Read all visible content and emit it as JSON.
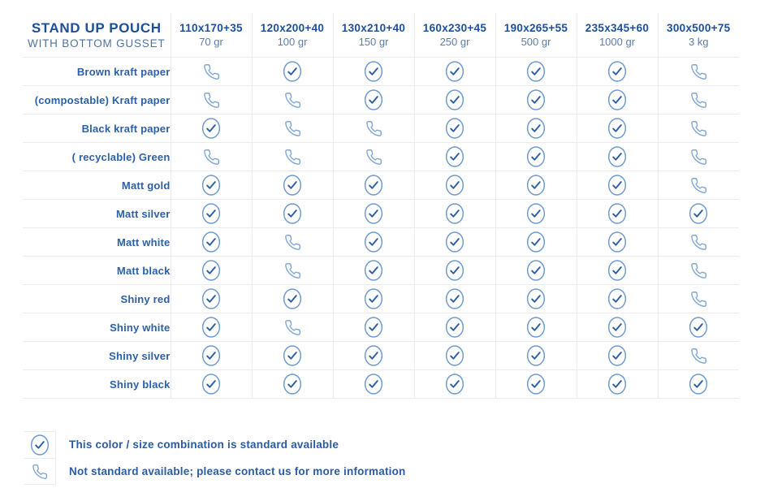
{
  "colors": {
    "title": "#1b4f9b",
    "subtitle": "#51739f",
    "col_size": "#1b4f9b",
    "col_weight": "#5c7cae",
    "row_label": "#2b61a8",
    "legend_text": "#2a5ca6",
    "check_circle": "#6f9bd1",
    "check_mark": "#2d5fa6",
    "phone": "#7fa6d4",
    "grid": "#ebecf1"
  },
  "header": {
    "title": "STAND UP POUCH",
    "subtitle": "WITH BOTTOM GUSSET"
  },
  "columns": [
    {
      "size": "110x170+35",
      "weight": "70 gr"
    },
    {
      "size": "120x200+40",
      "weight": "100 gr"
    },
    {
      "size": "130x210+40",
      "weight": "150 gr"
    },
    {
      "size": "160x230+45",
      "weight": "250 gr"
    },
    {
      "size": "190x265+55",
      "weight": "500 gr"
    },
    {
      "size": "235x345+60",
      "weight": "1000 gr"
    },
    {
      "size": "300x500+75",
      "weight": "3 kg"
    }
  ],
  "rows": [
    {
      "label": "Brown kraft paper",
      "cells": [
        "phone",
        "check",
        "check",
        "check",
        "check",
        "check",
        "phone"
      ]
    },
    {
      "label": "(compostable) Kraft paper",
      "cells": [
        "phone",
        "phone",
        "check",
        "check",
        "check",
        "check",
        "phone"
      ]
    },
    {
      "label": "Black kraft paper",
      "cells": [
        "check",
        "phone",
        "phone",
        "check",
        "check",
        "check",
        "phone"
      ]
    },
    {
      "label": "( recyclable) Green",
      "cells": [
        "phone",
        "phone",
        "phone",
        "check",
        "check",
        "check",
        "phone"
      ]
    },
    {
      "label": "Matt gold",
      "cells": [
        "check",
        "check",
        "check",
        "check",
        "check",
        "check",
        "phone"
      ]
    },
    {
      "label": "Matt silver",
      "cells": [
        "check",
        "check",
        "check",
        "check",
        "check",
        "check",
        "check"
      ]
    },
    {
      "label": "Matt white",
      "cells": [
        "check",
        "phone",
        "check",
        "check",
        "check",
        "check",
        "phone"
      ]
    },
    {
      "label": "Matt black",
      "cells": [
        "check",
        "phone",
        "check",
        "check",
        "check",
        "check",
        "phone"
      ]
    },
    {
      "label": "Shiny red",
      "cells": [
        "check",
        "check",
        "check",
        "check",
        "check",
        "check",
        "phone"
      ]
    },
    {
      "label": "Shiny white",
      "cells": [
        "check",
        "phone",
        "check",
        "check",
        "check",
        "check",
        "check"
      ]
    },
    {
      "label": "Shiny silver",
      "cells": [
        "check",
        "check",
        "check",
        "check",
        "check",
        "check",
        "phone"
      ]
    },
    {
      "label": "Shiny black",
      "cells": [
        "check",
        "check",
        "check",
        "check",
        "check",
        "check",
        "check"
      ]
    }
  ],
  "legend": {
    "items": [
      {
        "icon": "check",
        "text": "This color / size combination is standard available"
      },
      {
        "icon": "phone",
        "text": "Not standard available; please contact us for more information"
      }
    ]
  },
  "chart_data": {
    "type": "table",
    "title": "STAND UP POUCH WITH BOTTOM GUSSET",
    "columns": [
      "110x170+35 / 70 gr",
      "120x200+40 / 100 gr",
      "130x210+40 / 150 gr",
      "160x230+45 / 250 gr",
      "190x265+55 / 500 gr",
      "235x345+60 / 1000 gr",
      "300x500+75 / 3 kg"
    ],
    "row_labels": [
      "Brown kraft paper",
      "(compostable) Kraft paper",
      "Black kraft paper",
      "( recyclable) Green",
      "Matt gold",
      "Matt silver",
      "Matt white",
      "Matt black",
      "Shiny red",
      "Shiny white",
      "Shiny silver",
      "Shiny black"
    ],
    "cell_values": [
      [
        "phone",
        "check",
        "check",
        "check",
        "check",
        "check",
        "phone"
      ],
      [
        "phone",
        "phone",
        "check",
        "check",
        "check",
        "check",
        "phone"
      ],
      [
        "check",
        "phone",
        "phone",
        "check",
        "check",
        "check",
        "phone"
      ],
      [
        "phone",
        "phone",
        "phone",
        "check",
        "check",
        "check",
        "phone"
      ],
      [
        "check",
        "check",
        "check",
        "check",
        "check",
        "check",
        "phone"
      ],
      [
        "check",
        "check",
        "check",
        "check",
        "check",
        "check",
        "check"
      ],
      [
        "check",
        "phone",
        "check",
        "check",
        "check",
        "check",
        "phone"
      ],
      [
        "check",
        "phone",
        "check",
        "check",
        "check",
        "check",
        "phone"
      ],
      [
        "check",
        "check",
        "check",
        "check",
        "check",
        "check",
        "phone"
      ],
      [
        "check",
        "phone",
        "check",
        "check",
        "check",
        "check",
        "check"
      ],
      [
        "check",
        "check",
        "check",
        "check",
        "check",
        "check",
        "phone"
      ],
      [
        "check",
        "check",
        "check",
        "check",
        "check",
        "check",
        "check"
      ]
    ],
    "value_legend": {
      "check": "This color / size combination is standard available",
      "phone": "Not standard available; please contact us for more information"
    }
  }
}
